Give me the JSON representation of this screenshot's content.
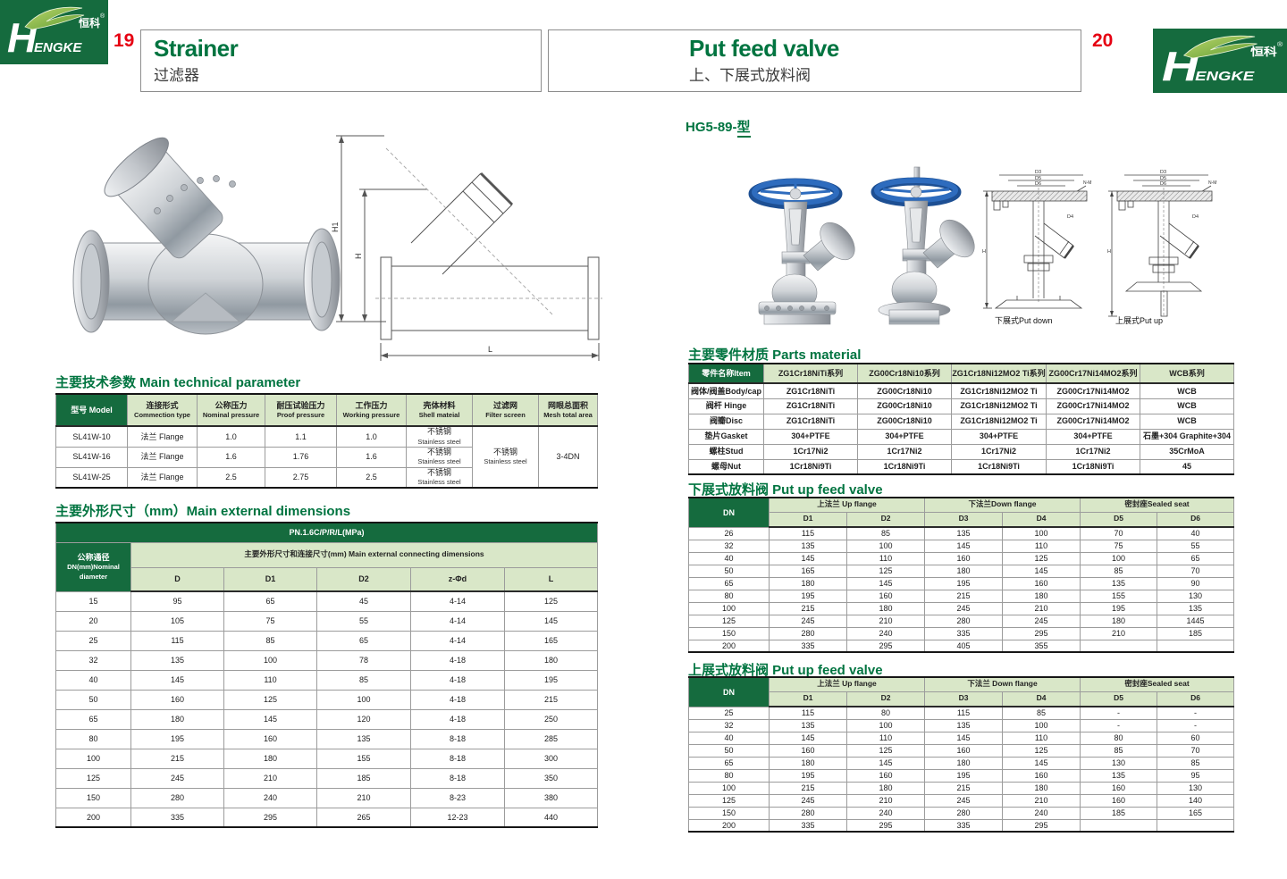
{
  "colors": {
    "dark_green": "#156b3e",
    "light_green": "#d9e7c8",
    "title_green": "#007440",
    "red": "#e60012",
    "handwheel_blue": "#2e6cbe",
    "metal_gray": "#c2c6cb",
    "border_gray": "#9c9c9c"
  },
  "brand": {
    "cn": "恒科",
    "reg": "®",
    "en_head": "H",
    "en_rest": "ENGKE"
  },
  "pages": {
    "left": {
      "num": "19",
      "title_en": "Strainer",
      "title_cn": "过滤器"
    },
    "right": {
      "num": "20",
      "title_en": "Put feed valve",
      "title_cn": "上、下展式放料阀"
    }
  },
  "left": {
    "tech": {
      "title": "主要技术参数 Main technical parameter",
      "headers": [
        [
          "型号 Model",
          ""
        ],
        [
          "连接形式",
          "Commection type"
        ],
        [
          "公称压力",
          "Nominal pressure"
        ],
        [
          "耐压试验压力",
          "Proof pressure"
        ],
        [
          "工作压力",
          "Working pressure"
        ],
        [
          "壳体材料",
          "Shell mateial"
        ],
        [
          "过滤网",
          "Filter screen"
        ],
        [
          "网眼总面积",
          "Mesh total area"
        ]
      ],
      "rows": [
        {
          "model": "SL41W-10",
          "conn": "法兰 Flange",
          "nominal": "1.0",
          "proof": "1.1",
          "working": "1.0",
          "shell_cn": "不锈钢",
          "shell_en": "Stainless steel"
        },
        {
          "model": "SL41W-16",
          "conn": "法兰 Flange",
          "nominal": "1.6",
          "proof": "1.76",
          "working": "1.6",
          "shell_cn": "不锈钢",
          "shell_en": "Stainless steel"
        },
        {
          "model": "SL41W-25",
          "conn": "法兰 Flange",
          "nominal": "2.5",
          "proof": "2.75",
          "working": "2.5",
          "shell_cn": "不锈钢",
          "shell_en": "Stainless steel"
        }
      ],
      "filter_cn": "不锈钢",
      "filter_en": "Stainless steel",
      "mesh_area": "3-4DN"
    },
    "dims": {
      "title": "主要外形尺寸（mm）Main external dimensions",
      "pn": "PN.1.6C/P/R/L(MPa)",
      "dn_cn": "公称通径",
      "dn_en": "DN(mm)Nominal",
      "dn_en2": "diameter",
      "group": "主要外形尺寸和连接尺寸(mm) Main external connecting dimensions",
      "cols": [
        "D",
        "D1",
        "D2",
        "z-Φd",
        "L"
      ],
      "rows": [
        [
          "15",
          "95",
          "65",
          "45",
          "4-14",
          "125"
        ],
        [
          "20",
          "105",
          "75",
          "55",
          "4-14",
          "145"
        ],
        [
          "25",
          "115",
          "85",
          "65",
          "4-14",
          "165"
        ],
        [
          "32",
          "135",
          "100",
          "78",
          "4-18",
          "180"
        ],
        [
          "40",
          "145",
          "110",
          "85",
          "4-18",
          "195"
        ],
        [
          "50",
          "160",
          "125",
          "100",
          "4-18",
          "215"
        ],
        [
          "65",
          "180",
          "145",
          "120",
          "4-18",
          "250"
        ],
        [
          "80",
          "195",
          "160",
          "135",
          "8-18",
          "285"
        ],
        [
          "100",
          "215",
          "180",
          "155",
          "8-18",
          "300"
        ],
        [
          "125",
          "245",
          "210",
          "185",
          "8-18",
          "350"
        ],
        [
          "150",
          "280",
          "240",
          "210",
          "8-23",
          "380"
        ],
        [
          "200",
          "335",
          "295",
          "265",
          "12-23",
          "440"
        ]
      ]
    },
    "drawing": {
      "h1": "H1",
      "h": "H",
      "l": "L"
    }
  },
  "right": {
    "model_prefix": "HG5-89-",
    "model_suffix": "型",
    "parts": {
      "title": "主要零件材质 Parts material",
      "item_header": "零件名称Item",
      "series": [
        "ZG1Cr18NiTi系列",
        "ZG00Cr18Ni10系列",
        "ZG1Cr18Ni12MO2 Ti系列",
        "ZG00Cr17Ni14MO2系列",
        "WCB系列"
      ],
      "rows": [
        {
          "item": "阀体/阀盖Body/cap",
          "values": [
            "ZG1Cr18NiTi",
            "ZG00Cr18Ni10",
            "ZG1Cr18Ni12MO2 Ti",
            "ZG00Cr17Ni14MO2",
            "WCB"
          ]
        },
        {
          "item": "阀杆 Hinge",
          "values": [
            "ZG1Cr18NiTi",
            "ZG00Cr18Ni10",
            "ZG1Cr18Ni12MO2 Ti",
            "ZG00Cr17Ni14MO2",
            "WCB"
          ]
        },
        {
          "item": "阀瓣Disc",
          "values": [
            "ZG1Cr18NiTi",
            "ZG00Cr18Ni10",
            "ZG1Cr18Ni12MO2 Ti",
            "ZG00Cr17Ni14MO2",
            "WCB"
          ]
        },
        {
          "item": "垫片Gasket",
          "values": [
            "304+PTFE",
            "304+PTFE",
            "304+PTFE",
            "304+PTFE",
            "石墨+304 Graphite+304"
          ]
        },
        {
          "item": "螺柱Stud",
          "values": [
            "1Cr17Ni2",
            "1Cr17Ni2",
            "1Cr17Ni2",
            "1Cr17Ni2",
            "35CrMoA"
          ]
        },
        {
          "item": "螺母Nut",
          "values": [
            "1Cr18Ni9Ti",
            "1Cr18Ni9Ti",
            "1Cr18Ni9Ti",
            "1Cr18Ni9Ti",
            "45"
          ]
        }
      ]
    },
    "down_table": {
      "title": "下展式放料阀 Put up feed valve",
      "dn": "DN",
      "groups": [
        "上法兰 Up flange",
        "下法兰Down flange",
        "密封座Sealed seat"
      ],
      "cols": [
        "D1",
        "D2",
        "D3",
        "D4",
        "D5",
        "D6"
      ],
      "rows": [
        [
          "26",
          "115",
          "85",
          "135",
          "100",
          "70",
          "40"
        ],
        [
          "32",
          "135",
          "100",
          "145",
          "110",
          "75",
          "55"
        ],
        [
          "40",
          "145",
          "110",
          "160",
          "125",
          "100",
          "65"
        ],
        [
          "50",
          "165",
          "125",
          "180",
          "145",
          "85",
          "70"
        ],
        [
          "65",
          "180",
          "145",
          "195",
          "160",
          "135",
          "90"
        ],
        [
          "80",
          "195",
          "160",
          "215",
          "180",
          "155",
          "130"
        ],
        [
          "100",
          "215",
          "180",
          "245",
          "210",
          "195",
          "135"
        ],
        [
          "125",
          "245",
          "210",
          "280",
          "245",
          "180",
          "1445"
        ],
        [
          "150",
          "280",
          "240",
          "335",
          "295",
          "210",
          "185"
        ],
        [
          "200",
          "335",
          "295",
          "405",
          "355",
          "",
          ""
        ]
      ]
    },
    "up_table": {
      "title": "上展式放料阀 Put up feed valve",
      "dn": "DN",
      "groups": [
        "上法兰 Up flange",
        "下法兰 Down flange",
        "密封座Sealed seat"
      ],
      "cols": [
        "D1",
        "D2",
        "D3",
        "D4",
        "D5",
        "D6"
      ],
      "rows": [
        [
          "25",
          "115",
          "80",
          "115",
          "85",
          "-",
          "-"
        ],
        [
          "32",
          "135",
          "100",
          "135",
          "100",
          "-",
          "-"
        ],
        [
          "40",
          "145",
          "110",
          "145",
          "110",
          "80",
          "60"
        ],
        [
          "50",
          "160",
          "125",
          "160",
          "125",
          "85",
          "70"
        ],
        [
          "65",
          "180",
          "145",
          "180",
          "145",
          "130",
          "85"
        ],
        [
          "80",
          "195",
          "160",
          "195",
          "160",
          "135",
          "95"
        ],
        [
          "100",
          "215",
          "180",
          "215",
          "180",
          "160",
          "130"
        ],
        [
          "125",
          "245",
          "210",
          "245",
          "210",
          "160",
          "140"
        ],
        [
          "150",
          "280",
          "240",
          "280",
          "240",
          "185",
          "165"
        ],
        [
          "200",
          "335",
          "295",
          "335",
          "295",
          "",
          ""
        ]
      ]
    },
    "captions": {
      "down": "下展式Put down",
      "up": "上展式Put up"
    },
    "dwg": {
      "d3": "D3",
      "d5": "D5",
      "d6": "D6",
      "nm": "N-M",
      "d4": "D4",
      "h": "H"
    }
  }
}
